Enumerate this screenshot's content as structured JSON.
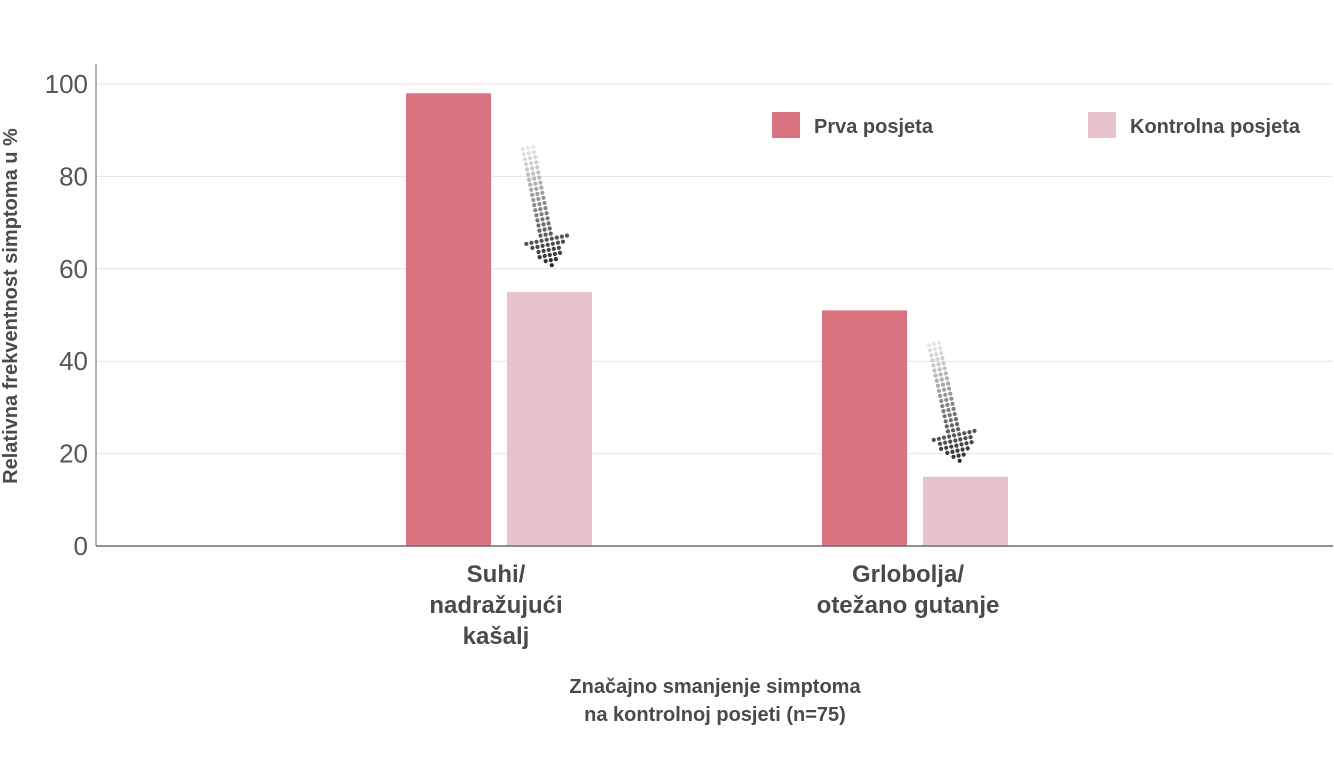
{
  "chart_data": {
    "type": "bar",
    "categories": [
      [
        "Suhi/",
        "nadražujući",
        "kašalj"
      ],
      [
        "Grlobolja/",
        "otežano gutanje"
      ]
    ],
    "series": [
      {
        "name": "Prva posjeta",
        "values": [
          98,
          51
        ],
        "color": "#d9737f"
      },
      {
        "name": "Kontrolna posjeta",
        "values": [
          55,
          15
        ],
        "color": "#e8c3cc"
      }
    ],
    "ylabel": "Relativna frekventnost simptoma u  %",
    "ylim": [
      0,
      100
    ],
    "yticks": [
      0,
      20,
      40,
      60,
      80,
      100
    ],
    "grid": true,
    "legend_position": "top-right",
    "annotation": [
      "Značajno smanjenje simptoma",
      "na kontrolnoj posjeti (n=75)"
    ],
    "arrow_icon": "dotted-down-arrow-icon"
  }
}
